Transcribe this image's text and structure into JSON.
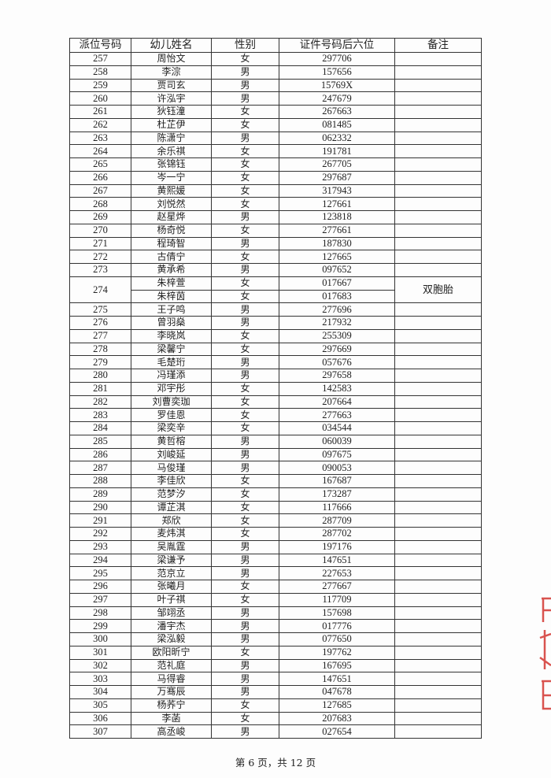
{
  "headers": [
    "派位号码",
    "幼儿姓名",
    "性别",
    "证件号码后六位",
    "备注"
  ],
  "rows": [
    {
      "no": "257",
      "name": "周怡文",
      "sex": "女",
      "id": "297706",
      "remark": ""
    },
    {
      "no": "258",
      "name": "李淙",
      "sex": "男",
      "id": "157656",
      "remark": ""
    },
    {
      "no": "259",
      "name": "贾司玄",
      "sex": "男",
      "id": "15769X",
      "remark": ""
    },
    {
      "no": "260",
      "name": "许泓宇",
      "sex": "男",
      "id": "247679",
      "remark": ""
    },
    {
      "no": "261",
      "name": "狄钰潼",
      "sex": "女",
      "id": "267663",
      "remark": ""
    },
    {
      "no": "262",
      "name": "杜芷伊",
      "sex": "女",
      "id": "081485",
      "remark": ""
    },
    {
      "no": "263",
      "name": "陈潇宁",
      "sex": "男",
      "id": "062332",
      "remark": ""
    },
    {
      "no": "264",
      "name": "余乐祺",
      "sex": "女",
      "id": "191781",
      "remark": ""
    },
    {
      "no": "265",
      "name": "张锦钰",
      "sex": "女",
      "id": "267705",
      "remark": ""
    },
    {
      "no": "266",
      "name": "岑一宁",
      "sex": "女",
      "id": "297687",
      "remark": ""
    },
    {
      "no": "267",
      "name": "黄熙媛",
      "sex": "女",
      "id": "317943",
      "remark": ""
    },
    {
      "no": "268",
      "name": "刘悦然",
      "sex": "女",
      "id": "127661",
      "remark": ""
    },
    {
      "no": "269",
      "name": "赵星烨",
      "sex": "男",
      "id": "123818",
      "remark": ""
    },
    {
      "no": "270",
      "name": "杨奇悦",
      "sex": "女",
      "id": "277661",
      "remark": ""
    },
    {
      "no": "271",
      "name": "程琦智",
      "sex": "男",
      "id": "187830",
      "remark": ""
    },
    {
      "no": "272",
      "name": "古倩宁",
      "sex": "女",
      "id": "127665",
      "remark": ""
    },
    {
      "no": "273",
      "name": "黄承希",
      "sex": "男",
      "id": "097652",
      "remark": ""
    },
    {
      "no": "274",
      "children": [
        {
          "name": "朱梓萱",
          "sex": "女",
          "id": "017667"
        },
        {
          "name": "朱梓茵",
          "sex": "女",
          "id": "017683"
        }
      ],
      "remark": "双胞胎"
    },
    {
      "no": "275",
      "name": "王子鸣",
      "sex": "男",
      "id": "277696",
      "remark": ""
    },
    {
      "no": "276",
      "name": "曾羽燊",
      "sex": "男",
      "id": "217932",
      "remark": ""
    },
    {
      "no": "277",
      "name": "李晓岚",
      "sex": "女",
      "id": "255309",
      "remark": ""
    },
    {
      "no": "278",
      "name": "梁馨宁",
      "sex": "女",
      "id": "297669",
      "remark": ""
    },
    {
      "no": "279",
      "name": "毛楚珩",
      "sex": "男",
      "id": "057676",
      "remark": ""
    },
    {
      "no": "280",
      "name": "冯瑾添",
      "sex": "男",
      "id": "297658",
      "remark": ""
    },
    {
      "no": "281",
      "name": "邓宇彤",
      "sex": "女",
      "id": "142583",
      "remark": ""
    },
    {
      "no": "282",
      "name": "刘曹奕珈",
      "sex": "女",
      "id": "207664",
      "remark": ""
    },
    {
      "no": "283",
      "name": "罗佳恩",
      "sex": "女",
      "id": "277663",
      "remark": ""
    },
    {
      "no": "284",
      "name": "梁奕辛",
      "sex": "女",
      "id": "034544",
      "remark": ""
    },
    {
      "no": "285",
      "name": "黄哲榕",
      "sex": "男",
      "id": "060039",
      "remark": ""
    },
    {
      "no": "286",
      "name": "刘峻延",
      "sex": "男",
      "id": "097675",
      "remark": ""
    },
    {
      "no": "287",
      "name": "马俊瑾",
      "sex": "男",
      "id": "090053",
      "remark": ""
    },
    {
      "no": "288",
      "name": "李佳欣",
      "sex": "女",
      "id": "167687",
      "remark": ""
    },
    {
      "no": "289",
      "name": "范梦汐",
      "sex": "女",
      "id": "173287",
      "remark": ""
    },
    {
      "no": "290",
      "name": "谭芷淇",
      "sex": "女",
      "id": "117666",
      "remark": ""
    },
    {
      "no": "291",
      "name": "郑欣",
      "sex": "女",
      "id": "287709",
      "remark": ""
    },
    {
      "no": "292",
      "name": "麦炜淇",
      "sex": "女",
      "id": "287702",
      "remark": ""
    },
    {
      "no": "293",
      "name": "吴胤霆",
      "sex": "男",
      "id": "197176",
      "remark": ""
    },
    {
      "no": "294",
      "name": "梁谦予",
      "sex": "男",
      "id": "147651",
      "remark": ""
    },
    {
      "no": "295",
      "name": "范京立",
      "sex": "男",
      "id": "227653",
      "remark": ""
    },
    {
      "no": "296",
      "name": "张曦月",
      "sex": "女",
      "id": "277667",
      "remark": ""
    },
    {
      "no": "297",
      "name": "叶子祺",
      "sex": "女",
      "id": "117709",
      "remark": ""
    },
    {
      "no": "298",
      "name": "邹翊丞",
      "sex": "男",
      "id": "157698",
      "remark": ""
    },
    {
      "no": "299",
      "name": "潘宇杰",
      "sex": "男",
      "id": "017776",
      "remark": ""
    },
    {
      "no": "300",
      "name": "梁泓毅",
      "sex": "男",
      "id": "077650",
      "remark": ""
    },
    {
      "no": "301",
      "name": "欧阳昕宁",
      "sex": "女",
      "id": "197762",
      "remark": ""
    },
    {
      "no": "302",
      "name": "范礼庭",
      "sex": "男",
      "id": "167695",
      "remark": ""
    },
    {
      "no": "303",
      "name": "马得睿",
      "sex": "男",
      "id": "147651",
      "remark": ""
    },
    {
      "no": "304",
      "name": "万骞辰",
      "sex": "男",
      "id": "047678",
      "remark": ""
    },
    {
      "no": "305",
      "name": "杨荞宁",
      "sex": "女",
      "id": "127685",
      "remark": ""
    },
    {
      "no": "306",
      "name": "李菡",
      "sex": "女",
      "id": "207683",
      "remark": ""
    },
    {
      "no": "307",
      "name": "高丞峻",
      "sex": "男",
      "id": "027654",
      "remark": ""
    }
  ],
  "footer": "第 6 页，共 12 页",
  "stamp_color": "#d9534f"
}
